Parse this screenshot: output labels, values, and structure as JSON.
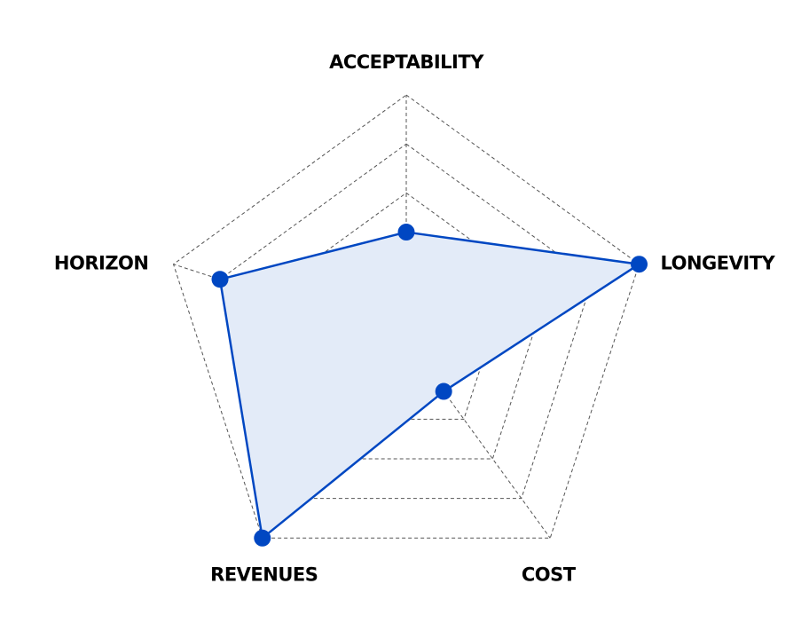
{
  "chart_data": {
    "type": "radar",
    "title": "",
    "axes": [
      "ACCEPTABILITY",
      "LONGEVITY",
      "COST",
      "REVENUES",
      "HORIZON"
    ],
    "rmax": 5,
    "grid_levels": 5,
    "grid": true,
    "legend": "none",
    "series": [
      {
        "values": [
          2.2,
          5.0,
          1.3,
          5.0,
          4.0
        ],
        "color": "#0047c2",
        "fill": "#e3ebf8"
      }
    ]
  }
}
